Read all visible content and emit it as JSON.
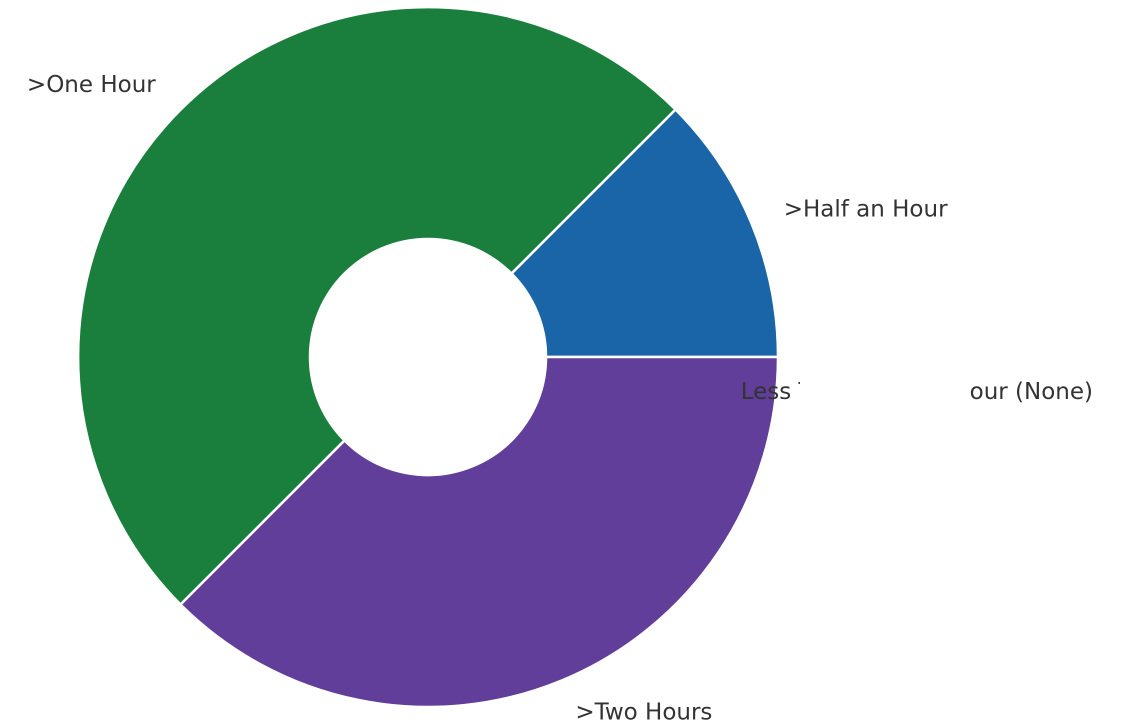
{
  "chart_data": {
    "type": "pie",
    "donut": true,
    "title": "",
    "categories": [
      ">Half an Hour",
      ">One Hour",
      ">Two Hours",
      "Less Than Half an Hour (None)"
    ],
    "values": [
      12.5,
      50,
      37.5,
      0
    ],
    "colors": [
      "#1a64a8",
      "#1a7f3d",
      "#603e99",
      "#cccccc"
    ],
    "start_angle_deg": 0,
    "direction": "counterclockwise",
    "legend": "none"
  }
}
